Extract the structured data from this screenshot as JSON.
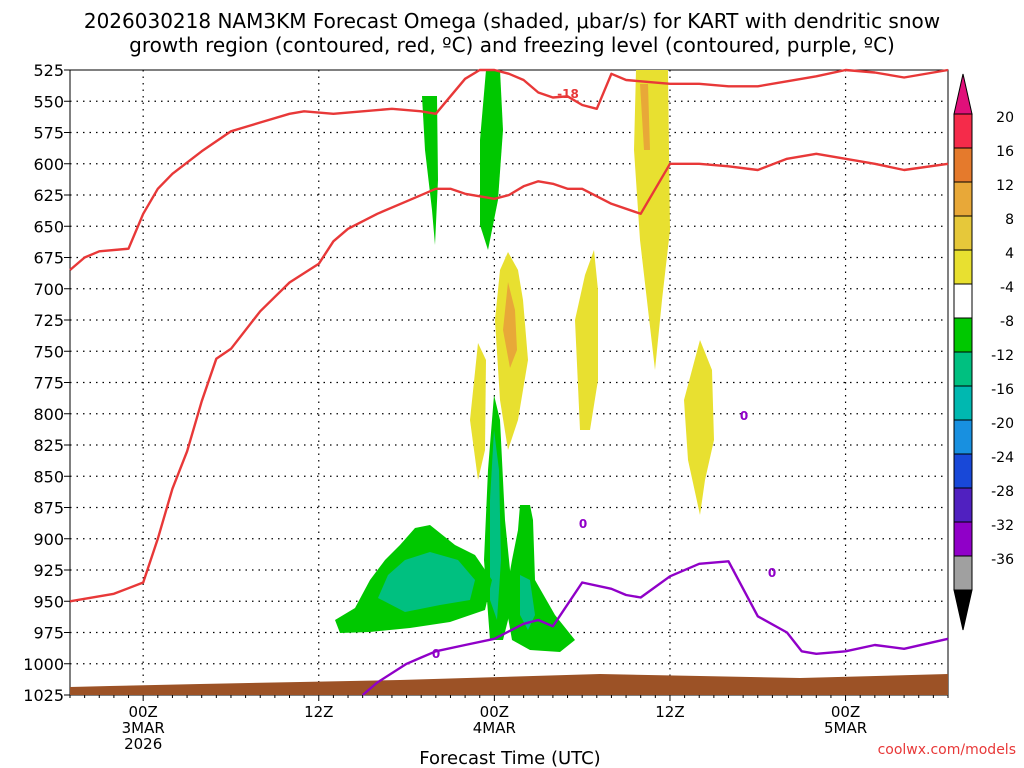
{
  "chart_data": {
    "type": "contour-time-height",
    "title": "2026030218 NAM3KM Forecast Omega (shaded, μbar/s) for KART with dendritic snow",
    "title_line2": "growth region (contoured, red, ºC) and freezing level (contoured, purple, ºC)",
    "xlabel": "Forecast Time (UTC)",
    "credit": "coolwx.com/models",
    "y_levels": [
      525,
      550,
      575,
      600,
      625,
      650,
      675,
      700,
      725,
      750,
      775,
      800,
      825,
      850,
      875,
      900,
      925,
      950,
      975,
      1000,
      1025
    ],
    "y_unit": "hPa",
    "x_range_hours": [
      -5,
      55
    ],
    "x_ticks": [
      {
        "hour": 0,
        "line1": "00Z",
        "line2": "3MAR",
        "line3": "2026"
      },
      {
        "hour": 12,
        "line1": "12Z",
        "line2": "",
        "line3": ""
      },
      {
        "hour": 24,
        "line1": "00Z",
        "line2": "4MAR",
        "line3": ""
      },
      {
        "hour": 36,
        "line1": "12Z",
        "line2": "",
        "line3": ""
      },
      {
        "hour": 48,
        "line1": "00Z",
        "line2": "5MAR",
        "line3": ""
      }
    ],
    "colorbar": {
      "labels": [
        "20",
        "16",
        "12",
        "8",
        "4",
        "-4",
        "-8",
        "-12",
        "-16",
        "-20",
        "-24",
        "-28",
        "-32",
        "-36"
      ],
      "colors": [
        "#f52b4a",
        "#e57a2c",
        "#e8a838",
        "#e6c83a",
        "#e8e030",
        "#ffffff",
        "#00c800",
        "#00c080",
        "#00b8b0",
        "#1890e0",
        "#1848d8",
        "#5020c0",
        "#9000c8",
        "#a0a0a0"
      ],
      "top_arrow_color": "#e0107a",
      "bottom_arrow_color": "#000000"
    },
    "contour_labels": {
      "dgz_upper": "-18",
      "freezing": "0"
    },
    "series": [
      {
        "name": "dendritic growth region upper (-18C)",
        "color": "#e83838",
        "x": [
          -5,
          -4,
          -3,
          -1,
          0,
          1,
          2,
          4,
          6,
          8,
          10,
          11,
          13,
          15,
          17,
          19,
          20,
          22,
          23,
          24,
          25,
          26,
          27,
          28,
          29,
          30,
          31,
          32,
          33,
          34,
          36,
          38,
          40,
          42,
          44,
          46,
          48,
          50,
          52,
          55
        ],
        "p": [
          685,
          675,
          670,
          668,
          640,
          620,
          608,
          590,
          574,
          567,
          560,
          558,
          560,
          558,
          556,
          558,
          560,
          532,
          525,
          525,
          528,
          533,
          543,
          547,
          546,
          553,
          556,
          528,
          533,
          534,
          536,
          536,
          538,
          538,
          534,
          530,
          525,
          527,
          531,
          525
        ]
      },
      {
        "name": "dendritic growth region lower (-12C)",
        "color": "#e83838",
        "x": [
          -5,
          -4,
          -2,
          0,
          1,
          2,
          3,
          4,
          5,
          6,
          8,
          10,
          12,
          13,
          14,
          16,
          18,
          20,
          21,
          22,
          23,
          24,
          25,
          26,
          27,
          28,
          29,
          30,
          32,
          34,
          36,
          38,
          40,
          42,
          44,
          46,
          48,
          50,
          52,
          55
        ],
        "p": [
          950,
          948,
          944,
          935,
          900,
          860,
          830,
          790,
          756,
          748,
          718,
          695,
          680,
          662,
          652,
          640,
          630,
          620,
          620,
          624,
          626,
          628,
          625,
          618,
          614,
          616,
          620,
          620,
          632,
          640,
          600,
          600,
          602,
          605,
          596,
          592,
          596,
          600,
          605,
          600
        ]
      },
      {
        "name": "freezing level (0C)",
        "color": "#9000c8",
        "x": [
          15,
          16,
          18,
          19,
          20,
          22,
          24,
          26,
          27,
          28,
          30,
          32,
          33,
          34,
          36,
          38,
          40,
          42,
          44,
          45,
          46,
          48,
          50,
          52,
          55
        ],
        "p": [
          1025,
          1015,
          1000,
          995,
          990,
          985,
          980,
          968,
          965,
          970,
          935,
          940,
          945,
          947,
          930,
          920,
          918,
          962,
          975,
          990,
          992,
          990,
          985,
          988,
          980
        ]
      }
    ]
  }
}
